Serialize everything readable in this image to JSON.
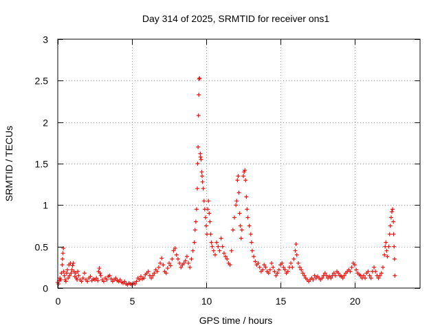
{
  "chart_data": {
    "type": "scatter",
    "title": "Day 314 of 2025, SRMTID for receiver ons1",
    "xlabel": "GPS time / hours",
    "ylabel": "SRMTID / TECUs",
    "xlim": [
      0,
      24.4
    ],
    "ylim": [
      0,
      3
    ],
    "xticks": [
      0,
      5,
      10,
      15,
      20
    ],
    "yticks": [
      0,
      0.5,
      1,
      1.5,
      2,
      2.5,
      3
    ],
    "ytick_labels": [
      "0",
      "0.5",
      "1",
      "1.5",
      "2",
      "2.5",
      "3"
    ],
    "grid": true,
    "marker": "+",
    "color": "#e8120f",
    "series": [
      {
        "name": "ons1",
        "points": [
          [
            0.0,
            0.07
          ],
          [
            0.05,
            0.05
          ],
          [
            0.1,
            0.09
          ],
          [
            0.15,
            0.12
          ],
          [
            0.2,
            0.1
          ],
          [
            0.25,
            0.18
          ],
          [
            0.3,
            0.28
          ],
          [
            0.32,
            0.35
          ],
          [
            0.35,
            0.42
          ],
          [
            0.38,
            0.48
          ],
          [
            0.4,
            0.2
          ],
          [
            0.45,
            0.15
          ],
          [
            0.5,
            0.1
          ],
          [
            0.55,
            0.08
          ],
          [
            0.6,
            0.18
          ],
          [
            0.65,
            0.22
          ],
          [
            0.7,
            0.12
          ],
          [
            0.75,
            0.28
          ],
          [
            0.8,
            0.15
          ],
          [
            0.85,
            0.3
          ],
          [
            0.9,
            0.18
          ],
          [
            0.95,
            0.22
          ],
          [
            1.0,
            0.27
          ],
          [
            1.05,
            0.3
          ],
          [
            1.1,
            0.2
          ],
          [
            1.15,
            0.14
          ],
          [
            1.2,
            0.18
          ],
          [
            1.25,
            0.12
          ],
          [
            1.3,
            0.1
          ],
          [
            1.35,
            0.2
          ],
          [
            1.4,
            0.15
          ],
          [
            1.5,
            0.1
          ],
          [
            1.6,
            0.08
          ],
          [
            1.7,
            0.12
          ],
          [
            1.8,
            0.18
          ],
          [
            1.9,
            0.1
          ],
          [
            2.0,
            0.08
          ],
          [
            2.1,
            0.12
          ],
          [
            2.2,
            0.14
          ],
          [
            2.3,
            0.09
          ],
          [
            2.4,
            0.11
          ],
          [
            2.5,
            0.1
          ],
          [
            2.6,
            0.12
          ],
          [
            2.7,
            0.09
          ],
          [
            2.75,
            0.2
          ],
          [
            2.8,
            0.24
          ],
          [
            2.85,
            0.18
          ],
          [
            2.9,
            0.15
          ],
          [
            3.0,
            0.1
          ],
          [
            3.1,
            0.08
          ],
          [
            3.2,
            0.12
          ],
          [
            3.3,
            0.1
          ],
          [
            3.4,
            0.14
          ],
          [
            3.5,
            0.15
          ],
          [
            3.6,
            0.11
          ],
          [
            3.7,
            0.08
          ],
          [
            3.8,
            0.1
          ],
          [
            3.9,
            0.12
          ],
          [
            4.0,
            0.09
          ],
          [
            4.1,
            0.08
          ],
          [
            4.2,
            0.1
          ],
          [
            4.3,
            0.07
          ],
          [
            4.4,
            0.06
          ],
          [
            4.5,
            0.08
          ],
          [
            4.6,
            0.05
          ],
          [
            4.7,
            0.04
          ],
          [
            4.8,
            0.06
          ],
          [
            4.9,
            0.05
          ],
          [
            5.0,
            0.04
          ],
          [
            5.1,
            0.06
          ],
          [
            5.2,
            0.05
          ],
          [
            5.3,
            0.08
          ],
          [
            5.4,
            0.12
          ],
          [
            5.5,
            0.1
          ],
          [
            5.6,
            0.14
          ],
          [
            5.7,
            0.11
          ],
          [
            5.8,
            0.12
          ],
          [
            5.9,
            0.16
          ],
          [
            6.0,
            0.18
          ],
          [
            6.1,
            0.2
          ],
          [
            6.2,
            0.15
          ],
          [
            6.3,
            0.12
          ],
          [
            6.4,
            0.15
          ],
          [
            6.5,
            0.18
          ],
          [
            6.6,
            0.22
          ],
          [
            6.7,
            0.2
          ],
          [
            6.8,
            0.25
          ],
          [
            6.9,
            0.3
          ],
          [
            7.0,
            0.36
          ],
          [
            7.1,
            0.28
          ],
          [
            7.2,
            0.2
          ],
          [
            7.3,
            0.18
          ],
          [
            7.4,
            0.24
          ],
          [
            7.5,
            0.3
          ],
          [
            7.6,
            0.27
          ],
          [
            7.7,
            0.35
          ],
          [
            7.8,
            0.45
          ],
          [
            7.9,
            0.48
          ],
          [
            8.0,
            0.4
          ],
          [
            8.1,
            0.35
          ],
          [
            8.2,
            0.3
          ],
          [
            8.3,
            0.25
          ],
          [
            8.4,
            0.28
          ],
          [
            8.5,
            0.3
          ],
          [
            8.6,
            0.33
          ],
          [
            8.7,
            0.38
          ],
          [
            8.8,
            0.3
          ],
          [
            8.9,
            0.25
          ],
          [
            9.0,
            0.35
          ],
          [
            9.1,
            0.45
          ],
          [
            9.2,
            0.55
          ],
          [
            9.25,
            0.7
          ],
          [
            9.3,
            0.8
          ],
          [
            9.35,
            0.95
          ],
          [
            9.4,
            1.2
          ],
          [
            9.42,
            1.5
          ],
          [
            9.45,
            1.7
          ],
          [
            9.48,
            2.08
          ],
          [
            9.5,
            2.33
          ],
          [
            9.52,
            2.52
          ],
          [
            9.55,
            2.53
          ],
          [
            9.6,
            1.62
          ],
          [
            9.62,
            1.58
          ],
          [
            9.65,
            1.55
          ],
          [
            9.7,
            1.4
          ],
          [
            9.72,
            1.35
          ],
          [
            9.75,
            1.28
          ],
          [
            9.8,
            1.2
          ],
          [
            9.85,
            1.05
          ],
          [
            9.9,
            0.95
          ],
          [
            9.95,
            0.85
          ],
          [
            10.0,
            0.75
          ],
          [
            10.05,
            0.65
          ],
          [
            10.1,
            0.95
          ],
          [
            10.15,
            1.05
          ],
          [
            10.2,
            0.9
          ],
          [
            10.25,
            0.8
          ],
          [
            10.3,
            0.65
          ],
          [
            10.35,
            0.55
          ],
          [
            10.4,
            0.5
          ],
          [
            10.5,
            0.45
          ],
          [
            10.6,
            0.4
          ],
          [
            10.7,
            0.55
          ],
          [
            10.8,
            0.5
          ],
          [
            10.9,
            0.45
          ],
          [
            11.0,
            0.6
          ],
          [
            11.1,
            0.5
          ],
          [
            11.2,
            0.42
          ],
          [
            11.3,
            0.38
          ],
          [
            11.4,
            0.35
          ],
          [
            11.5,
            0.3
          ],
          [
            11.6,
            0.28
          ],
          [
            11.7,
            0.45
          ],
          [
            11.8,
            0.7
          ],
          [
            11.9,
            0.85
          ],
          [
            12.0,
            1.0
          ],
          [
            12.05,
            1.05
          ],
          [
            12.1,
            1.3
          ],
          [
            12.15,
            1.35
          ],
          [
            12.2,
            1.15
          ],
          [
            12.25,
            0.9
          ],
          [
            12.3,
            0.75
          ],
          [
            12.35,
            0.6
          ],
          [
            12.4,
            0.7
          ],
          [
            12.5,
            1.35
          ],
          [
            12.55,
            1.4
          ],
          [
            12.6,
            1.42
          ],
          [
            12.65,
            1.3
          ],
          [
            12.7,
            1.1
          ],
          [
            12.75,
            0.95
          ],
          [
            12.8,
            0.85
          ],
          [
            12.9,
            0.75
          ],
          [
            13.0,
            0.65
          ],
          [
            13.05,
            0.55
          ],
          [
            13.1,
            0.45
          ],
          [
            13.2,
            0.38
          ],
          [
            13.3,
            0.32
          ],
          [
            13.4,
            0.28
          ],
          [
            13.5,
            0.3
          ],
          [
            13.6,
            0.25
          ],
          [
            13.7,
            0.2
          ],
          [
            13.8,
            0.22
          ],
          [
            13.9,
            0.28
          ],
          [
            14.0,
            0.25
          ],
          [
            14.1,
            0.2
          ],
          [
            14.2,
            0.18
          ],
          [
            14.3,
            0.22
          ],
          [
            14.4,
            0.3
          ],
          [
            14.5,
            0.25
          ],
          [
            14.6,
            0.2
          ],
          [
            14.7,
            0.15
          ],
          [
            14.8,
            0.18
          ],
          [
            14.9,
            0.22
          ],
          [
            15.0,
            0.28
          ],
          [
            15.1,
            0.3
          ],
          [
            15.2,
            0.25
          ],
          [
            15.3,
            0.22
          ],
          [
            15.4,
            0.18
          ],
          [
            15.5,
            0.2
          ],
          [
            15.6,
            0.25
          ],
          [
            15.7,
            0.3
          ],
          [
            15.8,
            0.25
          ],
          [
            15.9,
            0.35
          ],
          [
            16.0,
            0.45
          ],
          [
            16.05,
            0.53
          ],
          [
            16.1,
            0.4
          ],
          [
            16.2,
            0.3
          ],
          [
            16.3,
            0.25
          ],
          [
            16.4,
            0.22
          ],
          [
            16.5,
            0.18
          ],
          [
            16.6,
            0.15
          ],
          [
            16.7,
            0.12
          ],
          [
            16.8,
            0.1
          ],
          [
            16.9,
            0.08
          ],
          [
            17.0,
            0.1
          ],
          [
            17.1,
            0.12
          ],
          [
            17.2,
            0.1
          ],
          [
            17.3,
            0.15
          ],
          [
            17.4,
            0.12
          ],
          [
            17.5,
            0.14
          ],
          [
            17.6,
            0.12
          ],
          [
            17.7,
            0.1
          ],
          [
            17.8,
            0.12
          ],
          [
            17.9,
            0.15
          ],
          [
            18.0,
            0.18
          ],
          [
            18.1,
            0.15
          ],
          [
            18.2,
            0.12
          ],
          [
            18.3,
            0.14
          ],
          [
            18.4,
            0.12
          ],
          [
            18.5,
            0.15
          ],
          [
            18.6,
            0.18
          ],
          [
            18.7,
            0.15
          ],
          [
            18.8,
            0.2
          ],
          [
            18.9,
            0.18
          ],
          [
            19.0,
            0.15
          ],
          [
            19.1,
            0.14
          ],
          [
            19.2,
            0.12
          ],
          [
            19.3,
            0.15
          ],
          [
            19.4,
            0.18
          ],
          [
            19.5,
            0.2
          ],
          [
            19.6,
            0.22
          ],
          [
            19.7,
            0.2
          ],
          [
            19.8,
            0.25
          ],
          [
            19.9,
            0.3
          ],
          [
            20.0,
            0.28
          ],
          [
            20.1,
            0.22
          ],
          [
            20.2,
            0.18
          ],
          [
            20.3,
            0.16
          ],
          [
            20.4,
            0.15
          ],
          [
            20.5,
            0.12
          ],
          [
            20.6,
            0.15
          ],
          [
            20.7,
            0.12
          ],
          [
            20.8,
            0.18
          ],
          [
            20.9,
            0.2
          ],
          [
            21.0,
            0.15
          ],
          [
            21.1,
            0.12
          ],
          [
            21.2,
            0.2
          ],
          [
            21.3,
            0.25
          ],
          [
            21.4,
            0.2
          ],
          [
            21.5,
            0.15
          ],
          [
            21.6,
            0.12
          ],
          [
            21.7,
            0.15
          ],
          [
            21.8,
            0.18
          ],
          [
            21.9,
            0.25
          ],
          [
            22.0,
            0.4
          ],
          [
            22.05,
            0.5
          ],
          [
            22.1,
            0.55
          ],
          [
            22.15,
            0.45
          ],
          [
            22.2,
            0.38
          ],
          [
            22.3,
            0.5
          ],
          [
            22.35,
            0.65
          ],
          [
            22.4,
            0.75
          ],
          [
            22.45,
            0.85
          ],
          [
            22.5,
            0.92
          ],
          [
            22.55,
            0.95
          ],
          [
            22.6,
            0.8
          ],
          [
            22.62,
            0.65
          ],
          [
            22.65,
            0.5
          ],
          [
            22.68,
            0.35
          ],
          [
            22.7,
            0.15
          ]
        ]
      }
    ]
  }
}
